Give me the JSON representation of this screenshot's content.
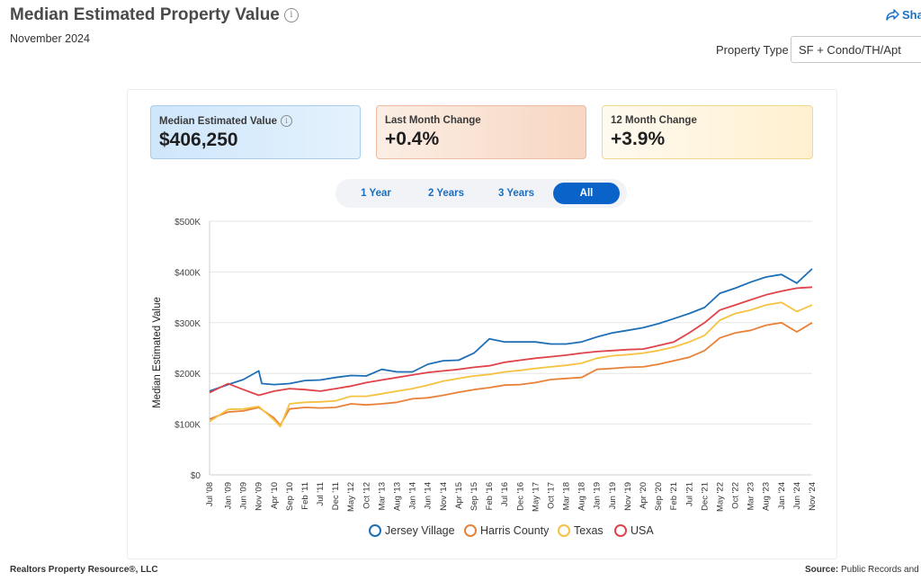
{
  "header": {
    "title": "Median Estimated Property Value",
    "subtitle": "November 2024",
    "share_label": "Sha",
    "property_type_label": "Property Type",
    "property_type_value": "SF + Condo/TH/Apt"
  },
  "cards": [
    {
      "label": "Median Estimated Value",
      "value": "$406,250"
    },
    {
      "label": "Last Month Change",
      "value": "+0.4%"
    },
    {
      "label": "12 Month Change",
      "value": "+3.9%"
    }
  ],
  "tabs": [
    {
      "label": "1 Year",
      "active": false
    },
    {
      "label": "2 Years",
      "active": false
    },
    {
      "label": "3 Years",
      "active": false
    },
    {
      "label": "All",
      "active": true
    }
  ],
  "footer": {
    "left": "Realtors Property Resource®, LLC",
    "right_bold": "Source:",
    "right_text": "Public Records and"
  },
  "chart_data": {
    "type": "line",
    "ylabel": "Median Estimated Value",
    "ylim": [
      0,
      500000
    ],
    "y_ticks": [
      "$0",
      "$100K",
      "$200K",
      "$300K",
      "$400K",
      "$500K"
    ],
    "x_ticks": [
      "Jul '08",
      "Jan '09",
      "Jun '09",
      "Nov '09",
      "Apr '10",
      "Sep '10",
      "Feb '11",
      "Jul '11",
      "Dec '11",
      "May '12",
      "Oct '12",
      "Mar '13",
      "Aug '13",
      "Jan '14",
      "Jun '14",
      "Nov '14",
      "Apr '15",
      "Sep '15",
      "Feb '16",
      "Jul '16",
      "Dec '16",
      "May '17",
      "Oct '17",
      "Mar '18",
      "Aug '18",
      "Jan '19",
      "Jun '19",
      "Nov '19",
      "Apr '20",
      "Sep '20",
      "Feb '21",
      "Jul '21",
      "Dec '21",
      "May '22",
      "Oct '22",
      "Mar '23",
      "Aug '23",
      "Jan '24",
      "Jun '24",
      "Nov '24"
    ],
    "grid": true,
    "legend_position": "bottom",
    "series": [
      {
        "name": "Jersey Village",
        "color": "#1f6fb5",
        "points": [
          [
            "Jul '08",
            165000
          ],
          [
            "Jan '09",
            178000
          ],
          [
            "Jun '09",
            188000
          ],
          [
            "Nov '09",
            205000
          ],
          [
            "Dec '09",
            180000
          ],
          [
            "Apr '10",
            178000
          ],
          [
            "Sep '10",
            180000
          ],
          [
            "Feb '11",
            186000
          ],
          [
            "Jul '11",
            187000
          ],
          [
            "Dec '11",
            192000
          ],
          [
            "May '12",
            196000
          ],
          [
            "Oct '12",
            195000
          ],
          [
            "Mar '13",
            208000
          ],
          [
            "Aug '13",
            203000
          ],
          [
            "Jan '14",
            203000
          ],
          [
            "Jun '14",
            218000
          ],
          [
            "Nov '14",
            225000
          ],
          [
            "Apr '15",
            226000
          ],
          [
            "Sep '15",
            240000
          ],
          [
            "Feb '16",
            268000
          ],
          [
            "Jul '16",
            262000
          ],
          [
            "Dec '16",
            262000
          ],
          [
            "May '17",
            262000
          ],
          [
            "Oct '17",
            258000
          ],
          [
            "Mar '18",
            258000
          ],
          [
            "Aug '18",
            262000
          ],
          [
            "Jan '19",
            272000
          ],
          [
            "Jun '19",
            280000
          ],
          [
            "Nov '19",
            285000
          ],
          [
            "Apr '20",
            290000
          ],
          [
            "Sep '20",
            298000
          ],
          [
            "Feb '21",
            308000
          ],
          [
            "Jul '21",
            318000
          ],
          [
            "Dec '21",
            330000
          ],
          [
            "May '22",
            358000
          ],
          [
            "Oct '22",
            368000
          ],
          [
            "Mar '23",
            380000
          ],
          [
            "Aug '23",
            390000
          ],
          [
            "Jan '24",
            395000
          ],
          [
            "Jun '24",
            378000
          ],
          [
            "Nov '24",
            406250
          ]
        ]
      },
      {
        "name": "Harris County",
        "color": "#e8823a",
        "points": [
          [
            "Jul '08",
            110000
          ],
          [
            "Jan '09",
            124000
          ],
          [
            "Jun '09",
            126000
          ],
          [
            "Nov '09",
            133000
          ],
          [
            "Apr '10",
            112000
          ],
          [
            "Jun '10",
            98000
          ],
          [
            "Sep '10",
            130000
          ],
          [
            "Feb '11",
            133000
          ],
          [
            "Jul '11",
            132000
          ],
          [
            "Dec '11",
            133000
          ],
          [
            "May '12",
            140000
          ],
          [
            "Oct '12",
            138000
          ],
          [
            "Mar '13",
            140000
          ],
          [
            "Aug '13",
            143000
          ],
          [
            "Jan '14",
            150000
          ],
          [
            "Jun '14",
            152000
          ],
          [
            "Nov '14",
            157000
          ],
          [
            "Apr '15",
            163000
          ],
          [
            "Sep '15",
            168000
          ],
          [
            "Feb '16",
            172000
          ],
          [
            "Jul '16",
            177000
          ],
          [
            "Dec '16",
            178000
          ],
          [
            "May '17",
            182000
          ],
          [
            "Oct '17",
            188000
          ],
          [
            "Mar '18",
            190000
          ],
          [
            "Aug '18",
            192000
          ],
          [
            "Jan '19",
            208000
          ],
          [
            "Jun '19",
            210000
          ],
          [
            "Nov '19",
            212000
          ],
          [
            "Apr '20",
            213000
          ],
          [
            "Sep '20",
            218000
          ],
          [
            "Feb '21",
            225000
          ],
          [
            "Jul '21",
            232000
          ],
          [
            "Dec '21",
            245000
          ],
          [
            "May '22",
            270000
          ],
          [
            "Oct '22",
            280000
          ],
          [
            "Mar '23",
            285000
          ],
          [
            "Aug '23",
            295000
          ],
          [
            "Jan '24",
            300000
          ],
          [
            "Jun '24",
            282000
          ],
          [
            "Nov '24",
            300000
          ]
        ]
      },
      {
        "name": "Texas",
        "color": "#f5c242",
        "points": [
          [
            "Jul '08",
            105000
          ],
          [
            "Jan '09",
            129000
          ],
          [
            "Jun '09",
            130000
          ],
          [
            "Nov '09",
            135000
          ],
          [
            "Apr '10",
            108000
          ],
          [
            "Jun '10",
            95000
          ],
          [
            "Sep '10",
            140000
          ],
          [
            "Feb '11",
            143000
          ],
          [
            "Jul '11",
            144000
          ],
          [
            "Dec '11",
            146000
          ],
          [
            "May '12",
            155000
          ],
          [
            "Oct '12",
            155000
          ],
          [
            "Mar '13",
            160000
          ],
          [
            "Aug '13",
            165000
          ],
          [
            "Jan '14",
            170000
          ],
          [
            "Jun '14",
            177000
          ],
          [
            "Nov '14",
            185000
          ],
          [
            "Apr '15",
            190000
          ],
          [
            "Sep '15",
            195000
          ],
          [
            "Feb '16",
            198000
          ],
          [
            "Jul '16",
            203000
          ],
          [
            "Dec '16",
            206000
          ],
          [
            "May '17",
            210000
          ],
          [
            "Oct '17",
            213000
          ],
          [
            "Mar '18",
            216000
          ],
          [
            "Aug '18",
            220000
          ],
          [
            "Jan '19",
            230000
          ],
          [
            "Jun '19",
            235000
          ],
          [
            "Nov '19",
            237000
          ],
          [
            "Apr '20",
            240000
          ],
          [
            "Sep '20",
            245000
          ],
          [
            "Feb '21",
            252000
          ],
          [
            "Jul '21",
            262000
          ],
          [
            "Dec '21",
            275000
          ],
          [
            "May '22",
            305000
          ],
          [
            "Oct '22",
            318000
          ],
          [
            "Mar '23",
            325000
          ],
          [
            "Aug '23",
            335000
          ],
          [
            "Jan '24",
            340000
          ],
          [
            "Jun '24",
            322000
          ],
          [
            "Nov '24",
            335000
          ]
        ]
      },
      {
        "name": "USA",
        "color": "#e0434a",
        "points": [
          [
            "Jul '08",
            162000
          ],
          [
            "Jan '09",
            180000
          ],
          [
            "Jun '09",
            168000
          ],
          [
            "Nov '09",
            157000
          ],
          [
            "Apr '10",
            165000
          ],
          [
            "Sep '10",
            170000
          ],
          [
            "Feb '11",
            168000
          ],
          [
            "Jul '11",
            165000
          ],
          [
            "Dec '11",
            170000
          ],
          [
            "May '12",
            175000
          ],
          [
            "Oct '12",
            182000
          ],
          [
            "Mar '13",
            187000
          ],
          [
            "Aug '13",
            192000
          ],
          [
            "Jan '14",
            197000
          ],
          [
            "Jun '14",
            202000
          ],
          [
            "Nov '14",
            205000
          ],
          [
            "Apr '15",
            208000
          ],
          [
            "Sep '15",
            212000
          ],
          [
            "Feb '16",
            215000
          ],
          [
            "Jul '16",
            222000
          ],
          [
            "Dec '16",
            226000
          ],
          [
            "May '17",
            230000
          ],
          [
            "Oct '17",
            233000
          ],
          [
            "Mar '18",
            236000
          ],
          [
            "Aug '18",
            240000
          ],
          [
            "Jan '19",
            243000
          ],
          [
            "Jun '19",
            245000
          ],
          [
            "Nov '19",
            247000
          ],
          [
            "Apr '20",
            248000
          ],
          [
            "Sep '20",
            255000
          ],
          [
            "Feb '21",
            262000
          ],
          [
            "Jul '21",
            280000
          ],
          [
            "Dec '21",
            300000
          ],
          [
            "May '22",
            325000
          ],
          [
            "Oct '22",
            335000
          ],
          [
            "Mar '23",
            345000
          ],
          [
            "Aug '23",
            355000
          ],
          [
            "Jan '24",
            362000
          ],
          [
            "Jun '24",
            368000
          ],
          [
            "Nov '24",
            370000
          ]
        ]
      }
    ]
  }
}
